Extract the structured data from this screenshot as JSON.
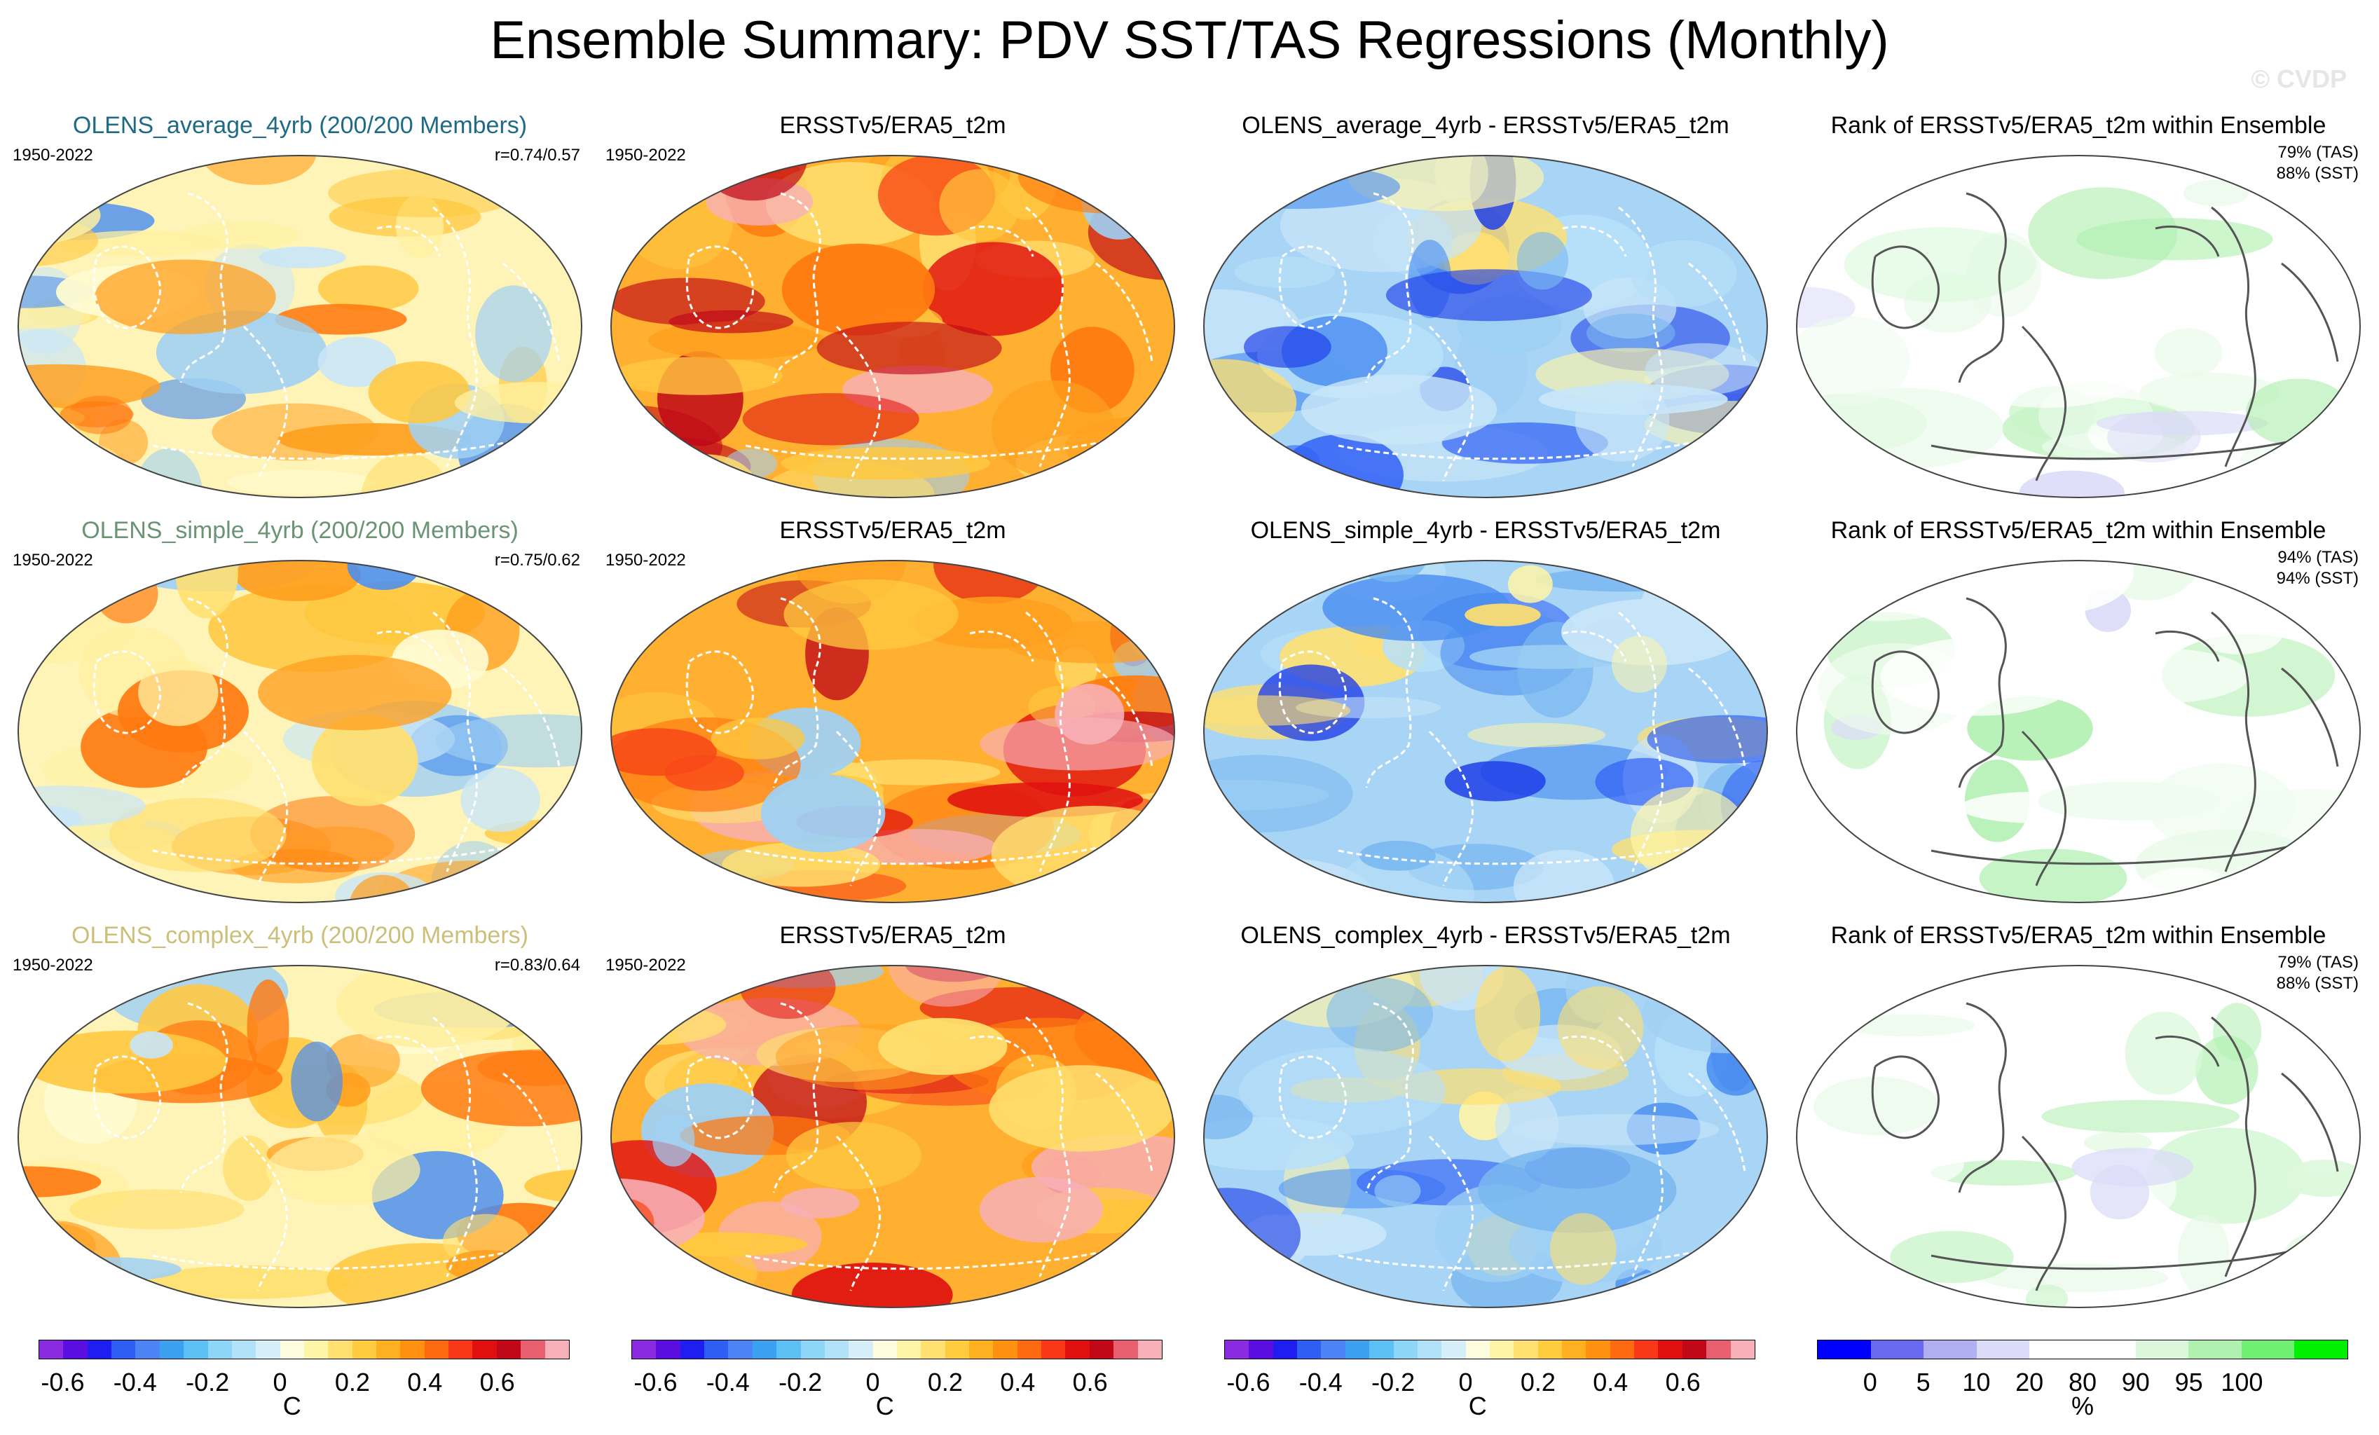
{
  "title": "Ensemble Summary: PDV SST/TAS Regressions (Monthly)",
  "watermark": "© CVDP",
  "rows": [
    {
      "ensemble": {
        "title": "OLENS_average_4yrb (200/200 Members)",
        "color": "#1f6a86",
        "period": "1950-2022",
        "corr": "r=0.74/0.57"
      },
      "obs": {
        "title": "ERSSTv5/ERA5_t2m",
        "period": "1950-2022"
      },
      "diff": {
        "title": "OLENS_average_4yrb - ERSSTv5/ERA5_t2m"
      },
      "rank": {
        "title": "Rank of ERSSTv5/ERA5_t2m within Ensemble",
        "tas": "79% (TAS)",
        "sst": "88% (SST)"
      }
    },
    {
      "ensemble": {
        "title": "OLENS_simple_4yrb (200/200 Members)",
        "color": "#6a9474",
        "period": "1950-2022",
        "corr": "r=0.75/0.62"
      },
      "obs": {
        "title": "ERSSTv5/ERA5_t2m",
        "period": "1950-2022"
      },
      "diff": {
        "title": "OLENS_simple_4yrb - ERSSTv5/ERA5_t2m"
      },
      "rank": {
        "title": "Rank of ERSSTv5/ERA5_t2m within Ensemble",
        "tas": "94% (TAS)",
        "sst": "94% (SST)"
      }
    },
    {
      "ensemble": {
        "title": "OLENS_complex_4yrb (200/200 Members)",
        "color": "#cbbf7a",
        "period": "1950-2022",
        "corr": "r=0.83/0.64"
      },
      "obs": {
        "title": "ERSSTv5/ERA5_t2m",
        "period": "1950-2022"
      },
      "diff": {
        "title": "OLENS_complex_4yrb - ERSSTv5/ERA5_t2m"
      },
      "rank": {
        "title": "Rank of ERSSTv5/ERA5_t2m within Ensemble",
        "tas": "79% (TAS)",
        "sst": "88% (SST)"
      }
    }
  ],
  "colorbars": {
    "regression": {
      "unit": "C",
      "ticks": [
        "-0.6",
        "-0.4",
        "-0.2",
        "0",
        "0.2",
        "0.4",
        "0.6"
      ],
      "colors": [
        "#8a2be2",
        "#5a0fe0",
        "#1e1ef0",
        "#2f5ef5",
        "#4a84f5",
        "#3ca0f0",
        "#5cc0f5",
        "#8ed6f8",
        "#b2e2f8",
        "#d6eef8",
        "#fffde0",
        "#fff5a8",
        "#ffe070",
        "#ffcc40",
        "#ffb020",
        "#ff9010",
        "#ff6a10",
        "#f83818",
        "#e01010",
        "#c00818",
        "#e86070",
        "#f8b0b8"
      ]
    },
    "rank": {
      "unit": "%",
      "ticks": [
        "0",
        "5",
        "10",
        "20",
        "80",
        "90",
        "95",
        "100"
      ],
      "colors": [
        "#0000ff",
        "#6a6af0",
        "#b0b0f0",
        "#dcdcf8",
        "#ffffff",
        "#ffffff",
        "#dcf8dc",
        "#b0f0b0",
        "#70f070",
        "#00ee00"
      ]
    }
  }
}
